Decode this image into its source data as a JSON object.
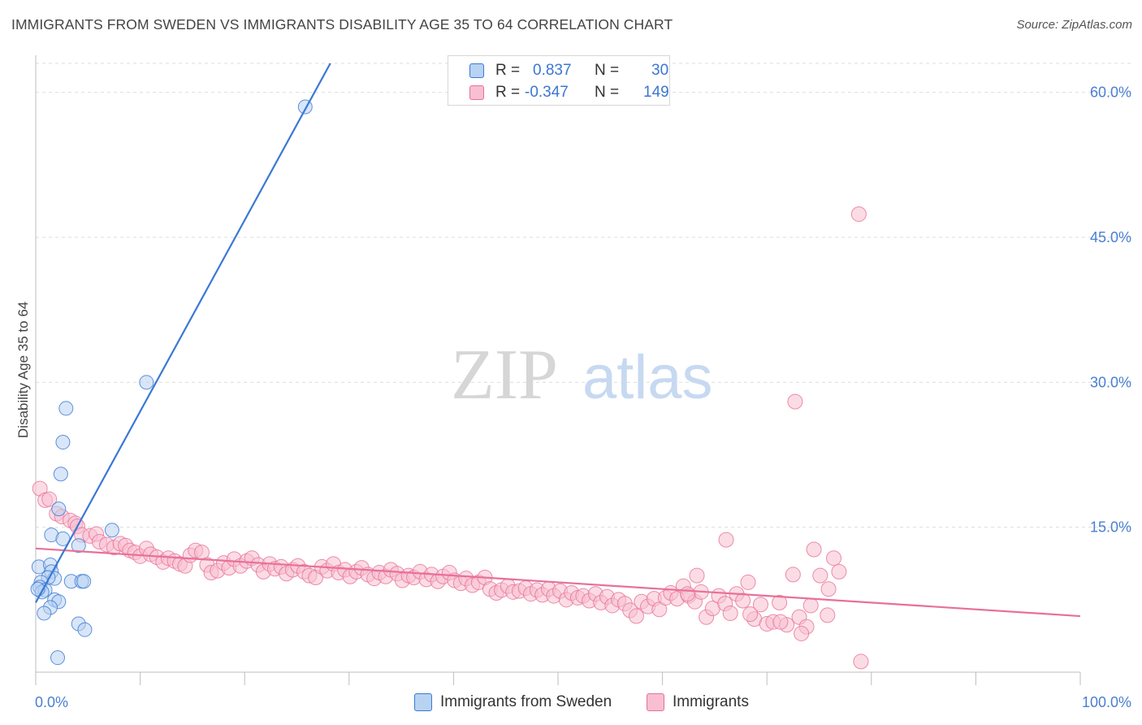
{
  "title": "IMMIGRANTS FROM SWEDEN VS IMMIGRANTS DISABILITY AGE 35 TO 64 CORRELATION CHART",
  "source": "Source: ZipAtlas.com",
  "watermark": {
    "zip": "ZIP",
    "atlas": "atlas"
  },
  "colors": {
    "blue": "#3a78d3",
    "blue_fill": "#b8d2f2",
    "pink": "#e8709a",
    "pink_fill": "#f7bfd0",
    "tick_text": "#4a7fd0",
    "grid": "#dddddd"
  },
  "legend": {
    "r_label": "R =",
    "n_label": "N =",
    "items": [
      {
        "r": "0.837",
        "n": "30",
        "color": "blue"
      },
      {
        "r": "-0.347",
        "n": "149",
        "color": "pink"
      }
    ]
  },
  "bottom_legend": [
    {
      "label": "Immigrants from Sweden",
      "color": "blue"
    },
    {
      "label": "Immigrants",
      "color": "pink"
    }
  ],
  "chart_data": {
    "type": "scatter",
    "title": "IMMIGRANTS FROM SWEDEN VS IMMIGRANTS DISABILITY AGE 35 TO 64 CORRELATION CHART",
    "xlabel": "",
    "ylabel": "Disability Age 35 to 64",
    "xlim": [
      0,
      100
    ],
    "ylim": [
      0,
      63
    ],
    "x_tick_labels": [
      "0.0%",
      "100.0%"
    ],
    "y_ticks": [
      15,
      30,
      45,
      60
    ],
    "y_tick_labels": [
      "15.0%",
      "30.0%",
      "45.0%",
      "60.0%"
    ],
    "grid": true,
    "legend_position": "top-center",
    "series": [
      {
        "name": "Immigrants from Sweden",
        "color": "blue",
        "r": 0.837,
        "n": 30,
        "trend": {
          "x": [
            0,
            28.2
          ],
          "y": [
            7.2,
            63
          ]
        },
        "points": [
          [
            25.8,
            58.5
          ],
          [
            10.6,
            30.0
          ],
          [
            2.9,
            27.3
          ],
          [
            2.6,
            23.8
          ],
          [
            2.4,
            20.5
          ],
          [
            2.2,
            16.9
          ],
          [
            7.3,
            14.7
          ],
          [
            1.5,
            14.2
          ],
          [
            2.6,
            13.8
          ],
          [
            4.1,
            13.1
          ],
          [
            0.3,
            10.9
          ],
          [
            1.4,
            11.1
          ],
          [
            1.5,
            10.4
          ],
          [
            1.8,
            9.7
          ],
          [
            1.2,
            9.8
          ],
          [
            0.5,
            9.3
          ],
          [
            3.4,
            9.4
          ],
          [
            4.4,
            9.4
          ],
          [
            4.6,
            9.4
          ],
          [
            0.4,
            8.8
          ],
          [
            0.9,
            8.5
          ],
          [
            0.6,
            8.3
          ],
          [
            1.8,
            7.5
          ],
          [
            2.2,
            7.3
          ],
          [
            1.4,
            6.7
          ],
          [
            0.8,
            6.1
          ],
          [
            4.1,
            5.0
          ],
          [
            4.7,
            4.4
          ],
          [
            2.1,
            1.5
          ],
          [
            0.2,
            8.6
          ]
        ]
      },
      {
        "name": "Immigrants",
        "color": "pink",
        "r": -0.347,
        "n": 149,
        "trend": {
          "x": [
            0,
            100
          ],
          "y": [
            12.8,
            5.8
          ]
        },
        "points": [
          [
            78.8,
            47.4
          ],
          [
            72.7,
            28.0
          ],
          [
            0.4,
            19.0
          ],
          [
            0.9,
            17.8
          ],
          [
            1.3,
            17.9
          ],
          [
            2.0,
            16.4
          ],
          [
            2.5,
            16.1
          ],
          [
            3.3,
            15.7
          ],
          [
            3.8,
            15.4
          ],
          [
            4.0,
            15.1
          ],
          [
            4.4,
            14.2
          ],
          [
            5.2,
            14.1
          ],
          [
            5.8,
            14.3
          ],
          [
            6.1,
            13.5
          ],
          [
            6.8,
            13.2
          ],
          [
            7.5,
            12.9
          ],
          [
            8.1,
            13.3
          ],
          [
            8.6,
            13.1
          ],
          [
            9.0,
            12.6
          ],
          [
            9.5,
            12.4
          ],
          [
            10.0,
            12.0
          ],
          [
            10.6,
            12.8
          ],
          [
            11.0,
            12.2
          ],
          [
            11.6,
            11.9
          ],
          [
            12.2,
            11.4
          ],
          [
            12.7,
            11.8
          ],
          [
            13.3,
            11.5
          ],
          [
            13.8,
            11.2
          ],
          [
            14.3,
            11.0
          ],
          [
            14.8,
            12.1
          ],
          [
            15.3,
            12.6
          ],
          [
            15.9,
            12.4
          ],
          [
            16.4,
            11.1
          ],
          [
            16.8,
            10.3
          ],
          [
            17.4,
            10.5
          ],
          [
            18.0,
            11.3
          ],
          [
            18.5,
            10.8
          ],
          [
            19.0,
            11.7
          ],
          [
            19.6,
            11.0
          ],
          [
            20.2,
            11.5
          ],
          [
            20.7,
            11.8
          ],
          [
            21.3,
            11.1
          ],
          [
            21.8,
            10.4
          ],
          [
            22.4,
            11.2
          ],
          [
            22.9,
            10.7
          ],
          [
            23.5,
            10.9
          ],
          [
            24.0,
            10.2
          ],
          [
            24.6,
            10.6
          ],
          [
            25.1,
            11.0
          ],
          [
            25.7,
            10.4
          ],
          [
            26.2,
            10.0
          ],
          [
            26.8,
            9.8
          ],
          [
            27.4,
            10.9
          ],
          [
            27.9,
            10.5
          ],
          [
            28.5,
            11.2
          ],
          [
            29.0,
            10.3
          ],
          [
            29.6,
            10.6
          ],
          [
            30.1,
            9.9
          ],
          [
            30.7,
            10.4
          ],
          [
            31.2,
            10.8
          ],
          [
            31.8,
            10.1
          ],
          [
            32.4,
            9.7
          ],
          [
            32.9,
            10.3
          ],
          [
            33.5,
            9.9
          ],
          [
            34.0,
            10.6
          ],
          [
            34.6,
            10.2
          ],
          [
            35.1,
            9.5
          ],
          [
            35.7,
            10.0
          ],
          [
            36.2,
            9.8
          ],
          [
            36.8,
            10.4
          ],
          [
            37.4,
            9.6
          ],
          [
            37.9,
            10.1
          ],
          [
            38.5,
            9.4
          ],
          [
            39.0,
            9.9
          ],
          [
            39.6,
            10.3
          ],
          [
            40.1,
            9.5
          ],
          [
            40.7,
            9.2
          ],
          [
            41.2,
            9.7
          ],
          [
            41.8,
            9.0
          ],
          [
            42.4,
            9.3
          ],
          [
            43.0,
            9.8
          ],
          [
            43.5,
            8.6
          ],
          [
            44.1,
            8.2
          ],
          [
            44.6,
            8.5
          ],
          [
            45.2,
            8.9
          ],
          [
            45.7,
            8.3
          ],
          [
            46.3,
            8.4
          ],
          [
            46.9,
            8.7
          ],
          [
            47.4,
            8.1
          ],
          [
            48.0,
            8.5
          ],
          [
            48.5,
            8.0
          ],
          [
            49.1,
            8.6
          ],
          [
            49.6,
            7.9
          ],
          [
            50.2,
            8.4
          ],
          [
            50.8,
            7.5
          ],
          [
            51.3,
            8.2
          ],
          [
            51.9,
            7.7
          ],
          [
            52.4,
            7.9
          ],
          [
            53.0,
            7.4
          ],
          [
            53.6,
            8.1
          ],
          [
            54.1,
            7.2
          ],
          [
            54.7,
            7.8
          ],
          [
            55.2,
            6.9
          ],
          [
            55.8,
            7.5
          ],
          [
            56.4,
            7.1
          ],
          [
            56.9,
            6.4
          ],
          [
            57.5,
            5.8
          ],
          [
            58.0,
            7.3
          ],
          [
            58.6,
            6.8
          ],
          [
            59.2,
            7.6
          ],
          [
            59.7,
            6.5
          ],
          [
            60.3,
            7.7
          ],
          [
            60.8,
            8.2
          ],
          [
            61.4,
            7.6
          ],
          [
            62.0,
            8.9
          ],
          [
            62.5,
            7.9
          ],
          [
            63.1,
            7.3
          ],
          [
            63.7,
            8.3
          ],
          [
            64.2,
            5.7
          ],
          [
            64.8,
            6.6
          ],
          [
            65.4,
            7.9
          ],
          [
            66.0,
            7.1
          ],
          [
            66.5,
            6.1
          ],
          [
            67.1,
            8.1
          ],
          [
            67.7,
            7.4
          ],
          [
            68.2,
            9.3
          ],
          [
            68.8,
            5.5
          ],
          [
            69.4,
            7.0
          ],
          [
            70.0,
            5.0
          ],
          [
            70.6,
            5.2
          ],
          [
            71.2,
            7.2
          ],
          [
            71.9,
            4.9
          ],
          [
            72.5,
            10.1
          ],
          [
            73.1,
            5.7
          ],
          [
            73.8,
            4.7
          ],
          [
            74.5,
            12.7
          ],
          [
            75.1,
            10.0
          ],
          [
            75.8,
            5.9
          ],
          [
            76.4,
            11.8
          ],
          [
            71.3,
            5.2
          ],
          [
            66.1,
            13.7
          ],
          [
            68.4,
            6.0
          ],
          [
            76.9,
            10.4
          ],
          [
            74.2,
            6.9
          ],
          [
            79.0,
            1.1
          ],
          [
            73.3,
            4.0
          ],
          [
            75.9,
            8.6
          ],
          [
            63.3,
            10.0
          ],
          [
            62.4,
            8.1
          ]
        ]
      }
    ]
  }
}
